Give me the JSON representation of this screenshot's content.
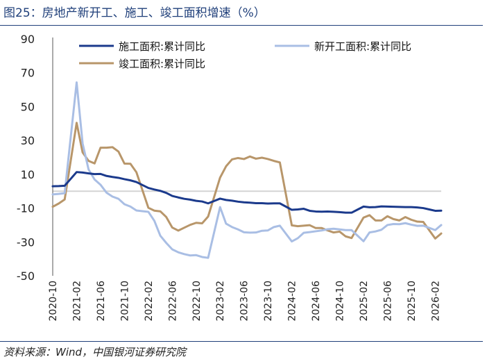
{
  "figure": {
    "title": "图25：房地产新开工、施工、竣工面积增速（%）",
    "source": "资料来源：Wind，中国银河证券研究院"
  },
  "colors": {
    "construction": "#1B3A8C",
    "new_starts": "#A9BEE4",
    "completion": "#B8966A",
    "zero_line": "#D4D4D4",
    "axis": "#555555"
  },
  "chart_data": {
    "type": "line",
    "title": "",
    "xlabel": "",
    "ylabel": "",
    "ylim": [
      -50,
      90
    ],
    "yticks": [
      90,
      70,
      50,
      30,
      10,
      -10,
      -30,
      -50
    ],
    "xticks": [
      "2020-10",
      "2021-02",
      "2021-06",
      "2021-10",
      "2022-02",
      "2022-06",
      "2022-10",
      "2023-02",
      "2023-06",
      "2023-10",
      "2024-02",
      "2024-06",
      "2024-10",
      "2025-02",
      "2025-06",
      "2025-10",
      "2026-02"
    ],
    "x": [
      "2020-10",
      "2020-11",
      "2020-12",
      "2021-01",
      "2021-02",
      "2021-03",
      "2021-04",
      "2021-05",
      "2021-06",
      "2021-07",
      "2021-08",
      "2021-09",
      "2021-10",
      "2021-11",
      "2021-12",
      "2022-01",
      "2022-02",
      "2022-03",
      "2022-04",
      "2022-05",
      "2022-06",
      "2022-07",
      "2022-08",
      "2022-09",
      "2022-10",
      "2022-11",
      "2022-12",
      "2023-01",
      "2023-02",
      "2023-03",
      "2023-04",
      "2023-05",
      "2023-06",
      "2023-07",
      "2023-08",
      "2023-09",
      "2023-10",
      "2023-11",
      "2023-12",
      "2024-01",
      "2024-02",
      "2024-03",
      "2024-04",
      "2024-05",
      "2024-06",
      "2024-07",
      "2024-08",
      "2024-09",
      "2024-10",
      "2024-11",
      "2024-12",
      "2025-01",
      "2025-02",
      "2025-03",
      "2025-04",
      "2025-05",
      "2025-06",
      "2025-07",
      "2025-08",
      "2025-09",
      "2025-10",
      "2025-11",
      "2025-12",
      "2026-01",
      "2026-02",
      "2026-03"
    ],
    "legend_position": "top",
    "series": [
      {
        "name": "施工面积:累计同比",
        "values": [
          2.9,
          3.0,
          3.2,
          null,
          11.3,
          11.0,
          10.5,
          10.1,
          10.2,
          9.0,
          8.4,
          7.9,
          7.1,
          6.4,
          5.4,
          null,
          1.9,
          1.0,
          0.2,
          -1.0,
          -2.8,
          -3.7,
          -4.5,
          -5.0,
          -5.7,
          -6.1,
          -7.2,
          null,
          -4.4,
          -5.2,
          -5.6,
          -6.2,
          -6.6,
          -6.8,
          -7.1,
          -7.1,
          -7.3,
          -7.2,
          -7.2,
          null,
          -11.0,
          -10.8,
          -10.4,
          -11.6,
          -12.0,
          -12.1,
          -12.0,
          -12.2,
          -12.4,
          -12.7,
          -12.7,
          null,
          -9.1,
          -9.5,
          -9.4,
          -9.0,
          -9.1,
          -9.2,
          -9.3,
          -9.4,
          -9.4,
          -9.6,
          -10.0,
          null,
          -11.6,
          -11.5
        ]
      },
      {
        "name": "新开工面积:累计同比",
        "values": [
          -1.9,
          -1.6,
          -1.2,
          null,
          64.3,
          28.2,
          12.8,
          6.9,
          3.8,
          -0.9,
          -3.2,
          -4.5,
          -7.7,
          -9.1,
          -11.4,
          null,
          -12.2,
          -17.5,
          -26.3,
          -30.6,
          -34.4,
          -36.1,
          -37.2,
          -38.0,
          -37.8,
          -38.9,
          -39.4,
          null,
          -9.4,
          -19.2,
          -21.2,
          -22.6,
          -24.3,
          -24.5,
          -24.4,
          -23.4,
          -23.2,
          -21.2,
          -20.4,
          null,
          -29.7,
          -27.8,
          -24.6,
          -24.2,
          -23.7,
          -23.2,
          -22.5,
          -22.2,
          -22.6,
          -23.0,
          -23.0,
          null,
          -29.6,
          -24.4,
          -23.8,
          -22.8,
          -20.0,
          -19.4,
          -19.5,
          -18.9,
          -19.8,
          -20.5,
          -20.4,
          null,
          -23.0,
          -20.0
        ]
      },
      {
        "name": "竣工面积:累计同比",
        "values": [
          -9.2,
          -7.3,
          -4.9,
          null,
          40.4,
          22.9,
          17.9,
          16.4,
          25.7,
          25.7,
          26.0,
          23.4,
          16.3,
          16.2,
          11.2,
          null,
          -9.8,
          -11.5,
          -11.9,
          -15.3,
          -21.5,
          -23.3,
          -21.6,
          -19.9,
          -18.7,
          -19.0,
          -15.0,
          null,
          8.0,
          14.7,
          18.8,
          19.6,
          19.0,
          20.5,
          19.2,
          19.8,
          19.0,
          17.9,
          17.0,
          null,
          -20.2,
          -20.7,
          -20.4,
          -20.1,
          -21.8,
          -21.8,
          -23.2,
          -24.4,
          -23.9,
          -26.7,
          -27.7,
          null,
          -15.6,
          -14.2,
          -17.3,
          -17.3,
          -14.8,
          -16.5,
          -17.3,
          -15.3,
          -16.9,
          -18.0,
          -18.2,
          null,
          -28.0,
          -25.0
        ]
      }
    ]
  }
}
